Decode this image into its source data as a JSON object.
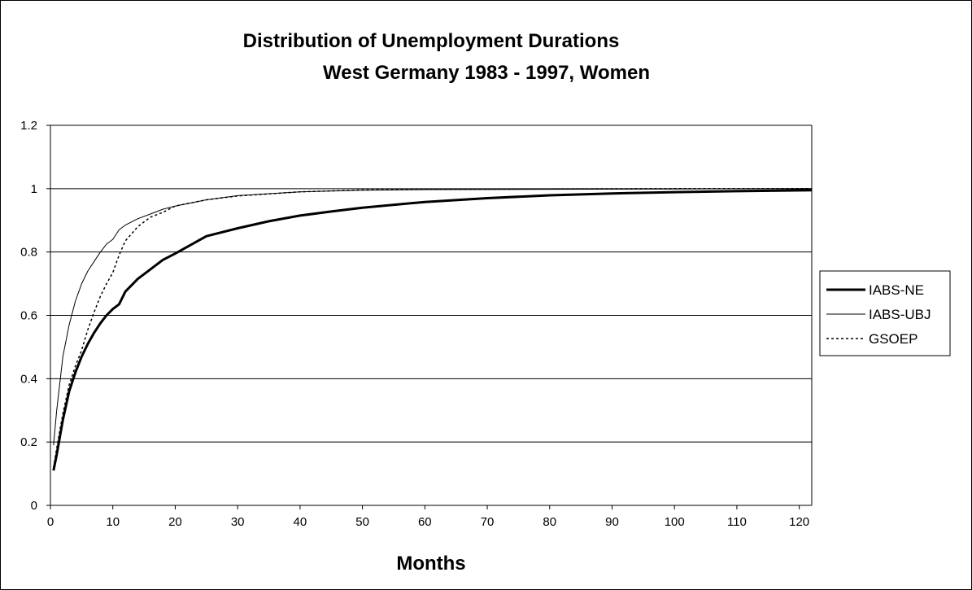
{
  "chart_data": {
    "type": "line",
    "title": "Distribution of Unemployment Durations",
    "subtitle": "West Germany 1983 - 1997, Women",
    "xlabel": "Months",
    "ylabel": "",
    "xlim": [
      0,
      122
    ],
    "ylim": [
      0,
      1.2
    ],
    "x_ticks": [
      0,
      10,
      20,
      30,
      40,
      50,
      60,
      70,
      80,
      90,
      100,
      110,
      120
    ],
    "y_ticks": [
      0,
      0.2,
      0.4,
      0.6,
      0.8,
      1,
      1.2
    ],
    "y_tick_labels": [
      "0",
      "0.2",
      "0.4",
      "0.6",
      "0.8",
      "1",
      "1.2"
    ],
    "grid": "horizontal",
    "legend_position": "right",
    "series": [
      {
        "name": "IABS-NE",
        "style": "thick",
        "color": "#000000",
        "x": [
          0.5,
          1,
          2,
          3,
          4,
          5,
          6,
          7,
          8,
          9,
          10,
          11,
          12,
          14,
          16,
          18,
          20,
          25,
          30,
          35,
          40,
          45,
          50,
          60,
          70,
          80,
          90,
          100,
          110,
          122
        ],
        "y": [
          0.11,
          0.16,
          0.27,
          0.36,
          0.42,
          0.47,
          0.51,
          0.545,
          0.575,
          0.6,
          0.62,
          0.635,
          0.675,
          0.715,
          0.745,
          0.775,
          0.795,
          0.85,
          0.875,
          0.897,
          0.915,
          0.928,
          0.94,
          0.958,
          0.97,
          0.979,
          0.985,
          0.989,
          0.992,
          0.995
        ]
      },
      {
        "name": "IABS-UBJ",
        "style": "thin",
        "color": "#000000",
        "x": [
          0.5,
          1,
          2,
          3,
          4,
          5,
          6,
          7,
          8,
          9,
          10,
          11,
          12,
          14,
          16,
          18,
          20,
          25,
          30,
          40,
          50,
          60,
          80,
          100,
          122
        ],
        "y": [
          0.19,
          0.3,
          0.47,
          0.57,
          0.645,
          0.7,
          0.74,
          0.77,
          0.8,
          0.825,
          0.84,
          0.87,
          0.885,
          0.905,
          0.92,
          0.935,
          0.945,
          0.965,
          0.978,
          0.99,
          0.995,
          0.997,
          0.998,
          0.999,
          1.0
        ]
      },
      {
        "name": "GSOEP",
        "style": "dashed",
        "color": "#000000",
        "x": [
          0.5,
          1,
          2,
          3,
          4,
          5,
          6,
          7,
          8,
          9,
          10,
          11,
          12,
          14,
          16,
          18,
          20,
          25,
          30,
          40,
          50,
          60,
          80,
          100,
          122
        ],
        "y": [
          0.12,
          0.18,
          0.29,
          0.38,
          0.44,
          0.49,
          0.555,
          0.61,
          0.66,
          0.7,
          0.735,
          0.79,
          0.835,
          0.88,
          0.91,
          0.925,
          0.945,
          0.965,
          0.977,
          0.99,
          0.996,
          0.998,
          0.999,
          1.0,
          1.0
        ]
      }
    ]
  }
}
